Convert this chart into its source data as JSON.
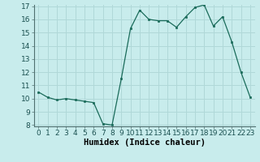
{
  "x": [
    0,
    1,
    2,
    3,
    4,
    5,
    6,
    7,
    8,
    9,
    10,
    11,
    12,
    13,
    14,
    15,
    16,
    17,
    18,
    19,
    20,
    21,
    22,
    23
  ],
  "y": [
    10.5,
    10.1,
    9.9,
    10.0,
    9.9,
    9.8,
    9.7,
    8.1,
    8.0,
    11.5,
    15.3,
    16.7,
    16.0,
    15.9,
    15.9,
    15.4,
    16.2,
    16.9,
    17.1,
    15.5,
    16.2,
    14.3,
    12.0,
    10.1
  ],
  "line_color": "#1a6b5a",
  "bg_color": "#c8ecec",
  "grid_color": "#b0d8d8",
  "xlabel": "Humidex (Indice chaleur)",
  "ylim": [
    8,
    17
  ],
  "xlim": [
    -0.5,
    23.5
  ],
  "yticks": [
    8,
    9,
    10,
    11,
    12,
    13,
    14,
    15,
    16,
    17
  ],
  "xticks": [
    0,
    1,
    2,
    3,
    4,
    5,
    6,
    7,
    8,
    9,
    10,
    11,
    12,
    13,
    14,
    15,
    16,
    17,
    18,
    19,
    20,
    21,
    22,
    23
  ],
  "tick_fontsize": 6.5,
  "xlabel_fontsize": 7.5
}
